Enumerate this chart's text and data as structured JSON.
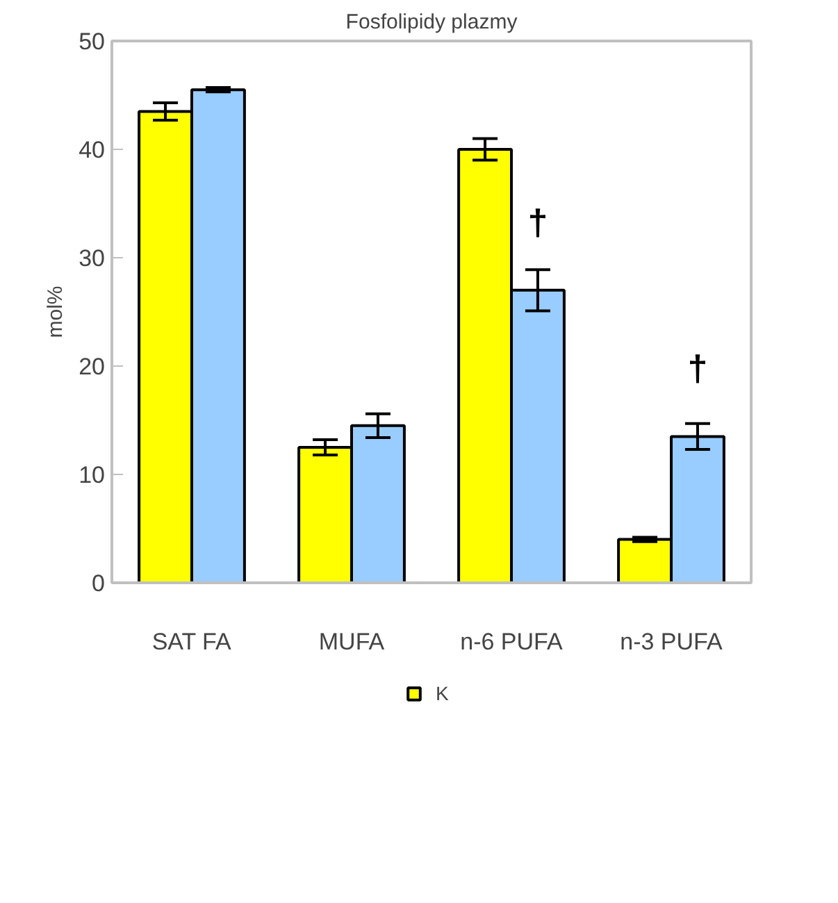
{
  "chart_data": {
    "type": "bar",
    "title": "Fosfolipidy plazmy",
    "ylabel": "mol%",
    "categories": [
      "SAT FA",
      "MUFA",
      "n-6 PUFA",
      "n-3 PUFA"
    ],
    "series": [
      {
        "name": "K",
        "color": "#ffff00",
        "values": [
          43.5,
          12.5,
          40,
          4
        ],
        "errors": [
          0.8,
          0.7,
          1.0,
          0.2
        ]
      },
      {
        "color": "#99ccff",
        "values": [
          45.5,
          14.5,
          27,
          13.5
        ],
        "errors": [
          0.2,
          1.1,
          1.9,
          1.2
        ]
      }
    ],
    "annotations": [
      {
        "text": "†",
        "x": "n-6 PUFA",
        "y": 27
      },
      {
        "text": "†",
        "x": "n-3 PUFA",
        "y": 13.5
      }
    ],
    "ylim": [
      0,
      50
    ],
    "yticks": [
      0,
      10,
      20,
      30,
      40,
      50
    ],
    "grid": false,
    "legend": "bottom"
  }
}
